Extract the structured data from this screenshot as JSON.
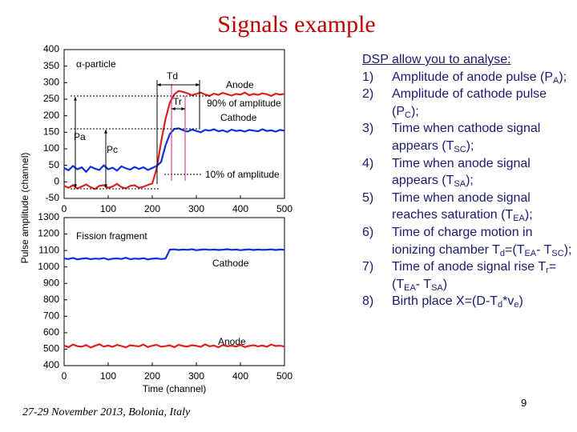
{
  "slide": {
    "title": "Signals example",
    "heading": "DSP allow you to analyse:",
    "items": [
      {
        "number": "1)",
        "runs": [
          "Amplitude of anode pulse (P",
          {
            "sub": "A"
          },
          ");"
        ]
      },
      {
        "number": "2)",
        "runs": [
          "Amplitude of cathode pulse (P",
          {
            "sub": "C"
          },
          ");"
        ]
      },
      {
        "number": "3)",
        "runs": [
          "Time when cathode signal appears (T",
          {
            "sub": "SC"
          },
          ");"
        ]
      },
      {
        "number": "4)",
        "runs": [
          "Time when anode signal appears (T",
          {
            "sub": "SA"
          },
          ");"
        ]
      },
      {
        "number": "5)",
        "runs": [
          "Time when anode signal reaches saturation (T",
          {
            "sub": "EA"
          },
          ");"
        ]
      },
      {
        "number": "6)",
        "runs": [
          "Time of charge motion in ionizing chamber T",
          {
            "sub": "d"
          },
          "=(T",
          {
            "sub": "EA"
          },
          "- T",
          {
            "sub": "SC"
          },
          ");"
        ]
      },
      {
        "number": "7)",
        "runs": [
          "Time of anode signal rise T",
          {
            "sub": "r"
          },
          "= (T",
          {
            "sub": "EA"
          },
          "- T",
          {
            "sub": "SA"
          },
          ")"
        ]
      },
      {
        "number": "8)",
        "runs": [
          " Birth place X=(D-T",
          {
            "sub": "d"
          },
          "*v",
          {
            "sub": "e"
          },
          ")"
        ]
      }
    ],
    "footer": "27-29 November 2013, Bolonia, Italy",
    "page": "9"
  },
  "chart_data": [
    {
      "type": "line",
      "ylabel": "Pulse amplitude (channel)",
      "x": [
        0,
        10,
        20,
        30,
        40,
        50,
        60,
        70,
        80,
        90,
        100,
        110,
        120,
        130,
        140,
        150,
        160,
        170,
        180,
        190,
        200,
        210,
        220,
        230,
        240,
        250,
        260,
        270,
        280,
        290,
        300,
        310,
        320,
        330,
        340,
        350,
        360,
        370,
        380,
        390,
        400,
        410,
        420,
        430,
        440,
        450,
        460,
        470,
        480,
        490,
        500
      ],
      "series": [
        {
          "name": "Anode",
          "color": "#e02020",
          "values": [
            -12,
            -18,
            -10,
            -20,
            -14,
            -8,
            -16,
            -22,
            -12,
            -10,
            -18,
            -14,
            -6,
            -16,
            -20,
            -12,
            -10,
            -18,
            -15,
            -9,
            -5,
            40,
            120,
            190,
            240,
            265,
            275,
            272,
            268,
            262,
            266,
            270,
            264,
            260,
            267,
            263,
            269,
            265,
            261,
            266,
            264,
            270,
            262,
            266,
            263,
            268,
            265,
            260,
            267,
            264,
            266
          ]
        },
        {
          "name": "Cathode",
          "color": "#1030e0",
          "values": [
            42,
            35,
            48,
            38,
            44,
            30,
            46,
            40,
            36,
            50,
            38,
            43,
            34,
            47,
            41,
            37,
            45,
            39,
            44,
            36,
            42,
            48,
            60,
            110,
            145,
            160,
            162,
            156,
            152,
            158,
            154,
            150,
            157,
            155,
            159,
            153,
            156,
            151,
            158,
            154,
            156,
            152,
            157,
            155,
            153,
            159,
            154,
            156,
            152,
            157,
            155
          ]
        }
      ],
      "xlim": [
        0,
        500
      ],
      "xticks": [
        0,
        100,
        200,
        300,
        400,
        500
      ],
      "ylim": [
        -50,
        400
      ],
      "yticks": [
        -50,
        0,
        50,
        100,
        150,
        200,
        250,
        300,
        350,
        400
      ],
      "annotations": [
        "α-particle",
        "Td",
        "Tr",
        "90% of amplitude",
        "Pa",
        "Pc",
        "10% of amplitude"
      ]
    },
    {
      "type": "line",
      "xlabel": "Time (channel)",
      "x": [
        0,
        10,
        20,
        30,
        40,
        50,
        60,
        70,
        80,
        90,
        100,
        110,
        120,
        130,
        140,
        150,
        160,
        170,
        180,
        190,
        200,
        210,
        220,
        230,
        240,
        250,
        260,
        270,
        280,
        290,
        300,
        310,
        320,
        330,
        340,
        350,
        360,
        370,
        380,
        390,
        400,
        410,
        420,
        430,
        440,
        450,
        460,
        470,
        480,
        490,
        500
      ],
      "series": [
        {
          "name": "Cathode",
          "color": "#1030e0",
          "values": [
            1052,
            1048,
            1055,
            1046,
            1050,
            1053,
            1047,
            1051,
            1049,
            1054,
            1045,
            1050,
            1052,
            1048,
            1056,
            1047,
            1051,
            1049,
            1053,
            1046,
            1050,
            1052,
            1048,
            1051,
            1105,
            1107,
            1103,
            1106,
            1104,
            1108,
            1102,
            1105,
            1107,
            1104,
            1106,
            1103,
            1105,
            1108,
            1104,
            1106,
            1102,
            1105,
            1107,
            1103,
            1106,
            1104,
            1105,
            1107,
            1103,
            1106,
            1104
          ]
        },
        {
          "name": "Anode",
          "color": "#e02020",
          "values": [
            522,
            512,
            528,
            518,
            515,
            525,
            510,
            520,
            530,
            516,
            522,
            514,
            526,
            519,
            511,
            524,
            520,
            517,
            528,
            513,
            521,
            526,
            515,
            518,
            523,
            512,
            527,
            519,
            516,
            524,
            520,
            514,
            529,
            517,
            522,
            511,
            525,
            518,
            521,
            516,
            526,
            513,
            520,
            524,
            517,
            522,
            515,
            528,
            519,
            521,
            516
          ]
        }
      ],
      "xlim": [
        0,
        500
      ],
      "xticks": [
        0,
        100,
        200,
        300,
        400,
        500
      ],
      "ylim": [
        400,
        1300
      ],
      "yticks": [
        400,
        500,
        600,
        700,
        800,
        900,
        1000,
        1100,
        1200,
        1300
      ],
      "annotations": [
        "Fission fragment"
      ]
    }
  ]
}
